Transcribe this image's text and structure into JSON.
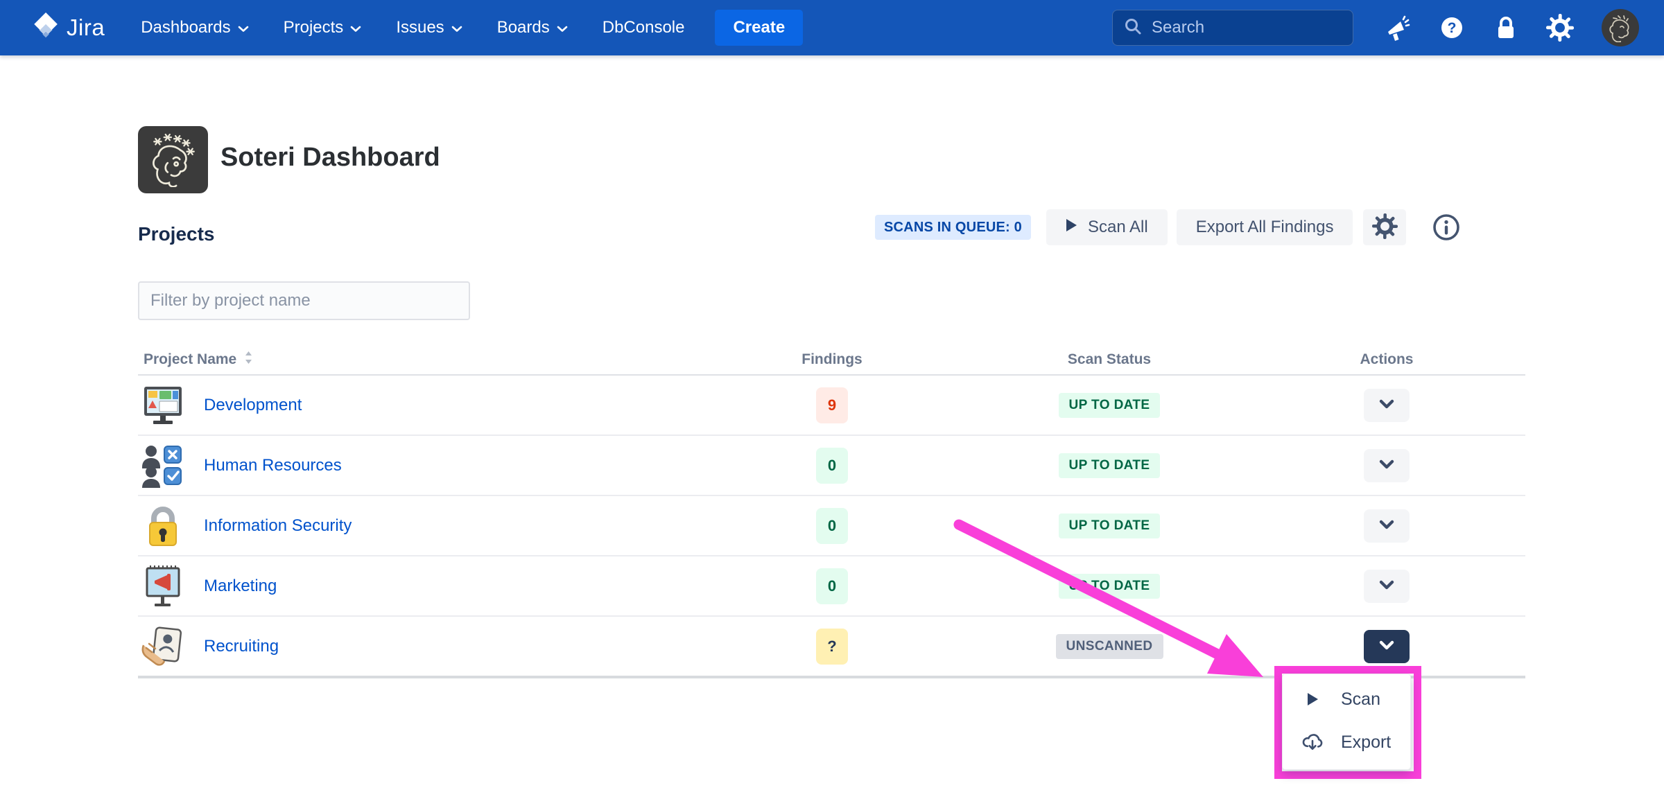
{
  "nav": {
    "brand": "Jira",
    "items": [
      {
        "label": "Dashboards",
        "caret": true
      },
      {
        "label": "Projects",
        "caret": true
      },
      {
        "label": "Issues",
        "caret": true
      },
      {
        "label": "Boards",
        "caret": true
      },
      {
        "label": "DbConsole",
        "caret": false
      }
    ],
    "create_label": "Create",
    "search_placeholder": "Search",
    "right_icons": [
      "megaphone-icon",
      "help-icon",
      "lock-icon",
      "gear-icon",
      "avatar"
    ]
  },
  "header": {
    "title": "Soteri Dashboard",
    "logo": "soteri-face-logo"
  },
  "section": {
    "heading": "Projects"
  },
  "toolbar": {
    "queue_badge": "SCANS IN QUEUE: 0",
    "scan_all_label": "Scan All",
    "export_all_label": "Export All Findings",
    "icons": [
      "gear-icon",
      "info-icon"
    ]
  },
  "filter": {
    "placeholder": "Filter by project name"
  },
  "table": {
    "columns": [
      "Project Name",
      "Findings",
      "Scan Status",
      "Actions"
    ],
    "rows": [
      {
        "name": "Development",
        "icon": "development-monitor-icon",
        "findings": "9",
        "findings_type": "danger",
        "status": "UP TO DATE",
        "status_type": "success",
        "menu_open": false
      },
      {
        "name": "Human Resources",
        "icon": "hr-people-icon",
        "findings": "0",
        "findings_type": "success",
        "status": "UP TO DATE",
        "status_type": "success",
        "menu_open": false
      },
      {
        "name": "Information Security",
        "icon": "security-padlock-icon",
        "findings": "0",
        "findings_type": "success",
        "status": "UP TO DATE",
        "status_type": "success",
        "menu_open": false
      },
      {
        "name": "Marketing",
        "icon": "marketing-billboard-icon",
        "findings": "0",
        "findings_type": "success",
        "status": "UP TO DATE",
        "status_type": "success",
        "menu_open": false
      },
      {
        "name": "Recruiting",
        "icon": "recruiting-hand-icon",
        "findings": "?",
        "findings_type": "warning",
        "status": "UNSCANNED",
        "status_type": "neutral",
        "menu_open": true
      }
    ]
  },
  "menu": {
    "items": [
      {
        "icon": "play-icon",
        "label": "Scan"
      },
      {
        "icon": "cloud-download-icon",
        "label": "Export"
      }
    ]
  },
  "colors": {
    "nav_blue": "#1456B8",
    "create_blue": "#0B66E4",
    "link_blue": "#0052CC",
    "queue_badge_bg": "#DEEBFF",
    "queue_badge_text": "#0747A6",
    "success_bg": "#E3FCEF",
    "success_text": "#006644",
    "danger_bg": "#FFEBE6",
    "danger_text": "#DE350B",
    "warning_bg": "#FFF0B3",
    "neutral_bg": "#DFE1E6",
    "neutral_text": "#505F79",
    "annotation_magenta": "#F93FD9"
  }
}
